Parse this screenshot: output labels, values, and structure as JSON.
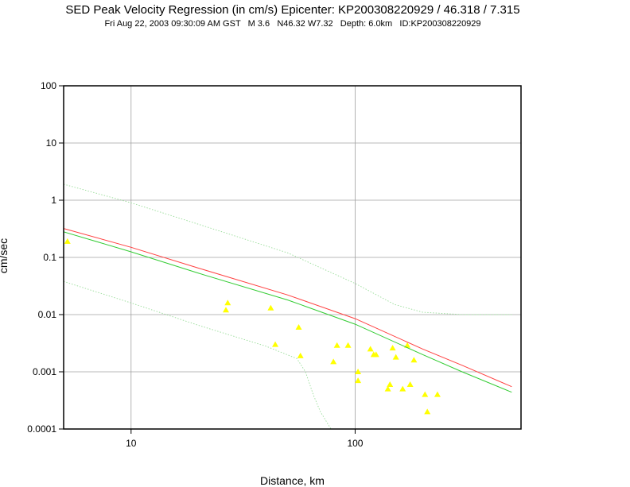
{
  "chart_data": {
    "type": "scatter",
    "title": "SED Peak Velocity Regression (in cm/s) Epicenter: KP200308220929 / 46.318 / 7.315",
    "subtitle": "Fri Aug 22, 2003 09:30:09 AM GST   M 3.6   N46.32 W7.32   Depth: 6.0km   ID:KP200308220929",
    "xlabel": "Distance, km",
    "ylabel": "cm/sec",
    "x_scale": "log",
    "y_scale": "log",
    "xlim": [
      5,
      550
    ],
    "ylim": [
      0.0001,
      100
    ],
    "x_ticks": [
      {
        "value": 10,
        "label": "10"
      },
      {
        "value": 100,
        "label": "100"
      }
    ],
    "y_ticks": [
      {
        "value": 100,
        "label": "100"
      },
      {
        "value": 10,
        "label": "10"
      },
      {
        "value": 1,
        "label": "1"
      },
      {
        "value": 0.1,
        "label": "0.1"
      },
      {
        "value": 0.01,
        "label": "0.01"
      },
      {
        "value": 0.001,
        "label": "0.001"
      },
      {
        "value": 0.0001,
        "label": "0.0001"
      }
    ],
    "grid": true,
    "series": [
      {
        "kind": "points",
        "color": "#ffff00",
        "points": [
          [
            5.2,
            0.19
          ],
          [
            27,
            0.016
          ],
          [
            26.5,
            0.012
          ],
          [
            42,
            0.013
          ],
          [
            44,
            0.003
          ],
          [
            56,
            0.006
          ],
          [
            57,
            0.0019
          ],
          [
            80,
            0.0015
          ],
          [
            83,
            0.0029
          ],
          [
            93,
            0.0029
          ],
          [
            103,
            0.001
          ],
          [
            103,
            0.0007
          ],
          [
            117,
            0.0025
          ],
          [
            121,
            0.002
          ],
          [
            124,
            0.002
          ],
          [
            140,
            0.0005
          ],
          [
            143,
            0.0006
          ],
          [
            147,
            0.0026
          ],
          [
            152,
            0.0018
          ],
          [
            163,
            0.0005
          ],
          [
            171,
            0.0029
          ],
          [
            176,
            0.0006
          ],
          [
            183,
            0.0016
          ],
          [
            205,
            0.0004
          ],
          [
            210,
            0.0002
          ],
          [
            233,
            0.0004
          ]
        ]
      },
      {
        "kind": "line",
        "color": "#ff4040",
        "points": [
          [
            5,
            0.32
          ],
          [
            10,
            0.15
          ],
          [
            20,
            0.065
          ],
          [
            50,
            0.022
          ],
          [
            100,
            0.0085
          ],
          [
            200,
            0.0025
          ],
          [
            300,
            0.0013
          ],
          [
            500,
            0.00055
          ]
        ]
      },
      {
        "kind": "line",
        "color": "#33cc33",
        "points": [
          [
            5,
            0.28
          ],
          [
            10,
            0.125
          ],
          [
            20,
            0.053
          ],
          [
            50,
            0.018
          ],
          [
            100,
            0.0068
          ],
          [
            200,
            0.002
          ],
          [
            300,
            0.001
          ],
          [
            500,
            0.00044
          ]
        ]
      },
      {
        "kind": "dotted",
        "color": "#99dd99",
        "points": [
          [
            5,
            1.9
          ],
          [
            10,
            0.9
          ],
          [
            20,
            0.38
          ],
          [
            50,
            0.12
          ],
          [
            100,
            0.035
          ],
          [
            150,
            0.015
          ],
          [
            200,
            0.011
          ],
          [
            300,
            0.01
          ],
          [
            500,
            0.01
          ]
        ]
      },
      {
        "kind": "dotted",
        "color": "#99dd99",
        "points": [
          [
            5,
            0.038
          ],
          [
            10,
            0.016
          ],
          [
            20,
            0.0065
          ],
          [
            40,
            0.0028
          ],
          [
            55,
            0.0017
          ],
          [
            60,
            0.001
          ],
          [
            65,
            0.0004
          ],
          [
            70,
            0.0002
          ],
          [
            78,
            0.0001
          ]
        ]
      }
    ]
  }
}
